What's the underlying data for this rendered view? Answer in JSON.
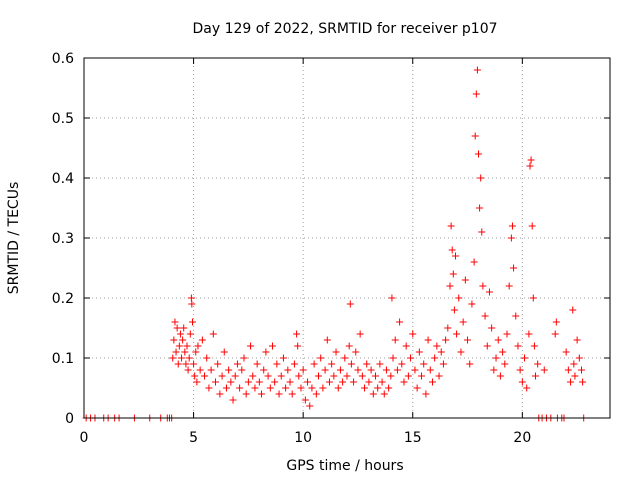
{
  "chart_data": {
    "type": "scatter",
    "title": "Day 129 of 2022, SRMTID for receiver p107",
    "xlabel": "GPS time / hours",
    "ylabel": "SRMTID / TECUs",
    "xlim": [
      0,
      24
    ],
    "ylim": [
      0,
      0.6
    ],
    "xticks": [
      0,
      5,
      10,
      15,
      20
    ],
    "yticks": [
      0,
      0.1,
      0.2,
      0.3,
      0.4,
      0.5,
      0.6
    ],
    "ytick_labels": [
      "0",
      "0.1",
      "0.2",
      "0.3",
      "0.4",
      "0.5",
      "0.6"
    ],
    "grid": true,
    "marker": "+",
    "color": "#ff0000",
    "series": [
      {
        "name": "SRMTID",
        "points": [
          [
            0.1,
            0
          ],
          [
            0.3,
            0
          ],
          [
            0.5,
            0
          ],
          [
            0.9,
            0
          ],
          [
            1.1,
            0
          ],
          [
            1.4,
            0
          ],
          [
            1.6,
            0
          ],
          [
            2.3,
            0
          ],
          [
            3.0,
            0
          ],
          [
            3.5,
            0
          ],
          [
            3.8,
            0
          ],
          [
            3.9,
            0
          ],
          [
            4.0,
            0
          ],
          [
            4.05,
            0.1
          ],
          [
            4.1,
            0.13
          ],
          [
            4.15,
            0.16
          ],
          [
            4.2,
            0.11
          ],
          [
            4.25,
            0.15
          ],
          [
            4.3,
            0.09
          ],
          [
            4.35,
            0.12
          ],
          [
            4.4,
            0.14
          ],
          [
            4.45,
            0.1
          ],
          [
            4.5,
            0.13
          ],
          [
            4.55,
            0.15
          ],
          [
            4.6,
            0.11
          ],
          [
            4.65,
            0.09
          ],
          [
            4.7,
            0.12
          ],
          [
            4.75,
            0.08
          ],
          [
            4.8,
            0.1
          ],
          [
            4.85,
            0.14
          ],
          [
            4.9,
            0.2
          ],
          [
            4.92,
            0.19
          ],
          [
            4.95,
            0.16
          ],
          [
            5.0,
            0.09
          ],
          [
            5.05,
            0.07
          ],
          [
            5.1,
            0.11
          ],
          [
            5.15,
            0.06
          ],
          [
            5.2,
            0.12
          ],
          [
            5.3,
            0.08
          ],
          [
            5.4,
            0.13
          ],
          [
            5.5,
            0.07
          ],
          [
            5.6,
            0.1
          ],
          [
            5.7,
            0.05
          ],
          [
            5.8,
            0.08
          ],
          [
            5.9,
            0.14
          ],
          [
            6.0,
            0.06
          ],
          [
            6.1,
            0.09
          ],
          [
            6.2,
            0.04
          ],
          [
            6.3,
            0.07
          ],
          [
            6.4,
            0.11
          ],
          [
            6.5,
            0.05
          ],
          [
            6.6,
            0.08
          ],
          [
            6.7,
            0.06
          ],
          [
            6.8,
            0.03
          ],
          [
            6.9,
            0.07
          ],
          [
            7.0,
            0.09
          ],
          [
            7.1,
            0.05
          ],
          [
            7.2,
            0.08
          ],
          [
            7.3,
            0.1
          ],
          [
            7.4,
            0.04
          ],
          [
            7.5,
            0.06
          ],
          [
            7.6,
            0.12
          ],
          [
            7.7,
            0.07
          ],
          [
            7.8,
            0.05
          ],
          [
            7.9,
            0.09
          ],
          [
            8.0,
            0.06
          ],
          [
            8.1,
            0.04
          ],
          [
            8.2,
            0.08
          ],
          [
            8.3,
            0.11
          ],
          [
            8.4,
            0.07
          ],
          [
            8.5,
            0.05
          ],
          [
            8.6,
            0.12
          ],
          [
            8.7,
            0.06
          ],
          [
            8.8,
            0.09
          ],
          [
            8.9,
            0.04
          ],
          [
            9.0,
            0.07
          ],
          [
            9.1,
            0.1
          ],
          [
            9.2,
            0.05
          ],
          [
            9.3,
            0.08
          ],
          [
            9.4,
            0.06
          ],
          [
            9.5,
            0.04
          ],
          [
            9.6,
            0.09
          ],
          [
            9.7,
            0.14
          ],
          [
            9.75,
            0.12
          ],
          [
            9.8,
            0.07
          ],
          [
            9.9,
            0.05
          ],
          [
            10.0,
            0.08
          ],
          [
            10.1,
            0.03
          ],
          [
            10.2,
            0.06
          ],
          [
            10.3,
            0.02
          ],
          [
            10.4,
            0.05
          ],
          [
            10.5,
            0.09
          ],
          [
            10.6,
            0.04
          ],
          [
            10.7,
            0.07
          ],
          [
            10.8,
            0.1
          ],
          [
            10.9,
            0.05
          ],
          [
            11.0,
            0.08
          ],
          [
            11.1,
            0.13
          ],
          [
            11.2,
            0.06
          ],
          [
            11.3,
            0.09
          ],
          [
            11.4,
            0.07
          ],
          [
            11.5,
            0.11
          ],
          [
            11.6,
            0.05
          ],
          [
            11.7,
            0.08
          ],
          [
            11.8,
            0.06
          ],
          [
            11.9,
            0.1
          ],
          [
            12.0,
            0.07
          ],
          [
            12.1,
            0.12
          ],
          [
            12.15,
            0.19
          ],
          [
            12.2,
            0.09
          ],
          [
            12.3,
            0.06
          ],
          [
            12.4,
            0.11
          ],
          [
            12.5,
            0.08
          ],
          [
            12.6,
            0.14
          ],
          [
            12.7,
            0.07
          ],
          [
            12.8,
            0.05
          ],
          [
            12.9,
            0.09
          ],
          [
            13.0,
            0.06
          ],
          [
            13.1,
            0.08
          ],
          [
            13.2,
            0.04
          ],
          [
            13.3,
            0.07
          ],
          [
            13.4,
            0.05
          ],
          [
            13.5,
            0.09
          ],
          [
            13.6,
            0.06
          ],
          [
            13.7,
            0.04
          ],
          [
            13.8,
            0.08
          ],
          [
            13.9,
            0.05
          ],
          [
            14.0,
            0.07
          ],
          [
            14.05,
            0.2
          ],
          [
            14.1,
            0.1
          ],
          [
            14.2,
            0.13
          ],
          [
            14.3,
            0.08
          ],
          [
            14.4,
            0.16
          ],
          [
            14.5,
            0.09
          ],
          [
            14.6,
            0.06
          ],
          [
            14.7,
            0.12
          ],
          [
            14.8,
            0.07
          ],
          [
            14.9,
            0.1
          ],
          [
            15.0,
            0.14
          ],
          [
            15.1,
            0.08
          ],
          [
            15.2,
            0.05
          ],
          [
            15.3,
            0.11
          ],
          [
            15.4,
            0.07
          ],
          [
            15.5,
            0.09
          ],
          [
            15.6,
            0.04
          ],
          [
            15.7,
            0.13
          ],
          [
            15.8,
            0.08
          ],
          [
            15.9,
            0.06
          ],
          [
            16.0,
            0.1
          ],
          [
            16.1,
            0.12
          ],
          [
            16.2,
            0.07
          ],
          [
            16.3,
            0.11
          ],
          [
            16.4,
            0.09
          ],
          [
            16.5,
            0.13
          ],
          [
            16.6,
            0.15
          ],
          [
            16.7,
            0.22
          ],
          [
            16.75,
            0.32
          ],
          [
            16.8,
            0.28
          ],
          [
            16.85,
            0.24
          ],
          [
            16.9,
            0.18
          ],
          [
            16.95,
            0.27
          ],
          [
            17.0,
            0.14
          ],
          [
            17.1,
            0.2
          ],
          [
            17.2,
            0.11
          ],
          [
            17.3,
            0.16
          ],
          [
            17.4,
            0.23
          ],
          [
            17.5,
            0.13
          ],
          [
            17.6,
            0.09
          ],
          [
            17.7,
            0.19
          ],
          [
            17.8,
            0.26
          ],
          [
            17.85,
            0.47
          ],
          [
            17.9,
            0.54
          ],
          [
            17.95,
            0.58
          ],
          [
            18.0,
            0.44
          ],
          [
            18.05,
            0.35
          ],
          [
            18.1,
            0.4
          ],
          [
            18.15,
            0.31
          ],
          [
            18.2,
            0.22
          ],
          [
            18.3,
            0.17
          ],
          [
            18.4,
            0.12
          ],
          [
            18.5,
            0.21
          ],
          [
            18.6,
            0.15
          ],
          [
            18.7,
            0.08
          ],
          [
            18.8,
            0.1
          ],
          [
            18.9,
            0.13
          ],
          [
            19.0,
            0.07
          ],
          [
            19.1,
            0.11
          ],
          [
            19.2,
            0.09
          ],
          [
            19.3,
            0.14
          ],
          [
            19.4,
            0.22
          ],
          [
            19.5,
            0.3
          ],
          [
            19.55,
            0.32
          ],
          [
            19.6,
            0.25
          ],
          [
            19.7,
            0.17
          ],
          [
            19.8,
            0.12
          ],
          [
            19.9,
            0.08
          ],
          [
            20.0,
            0.06
          ],
          [
            20.1,
            0.1
          ],
          [
            20.2,
            0.05
          ],
          [
            20.3,
            0.14
          ],
          [
            20.35,
            0.42
          ],
          [
            20.4,
            0.43
          ],
          [
            20.45,
            0.32
          ],
          [
            20.5,
            0.2
          ],
          [
            20.55,
            0.12
          ],
          [
            20.6,
            0.07
          ],
          [
            20.7,
            0.09
          ],
          [
            20.75,
            0
          ],
          [
            20.9,
            0
          ],
          [
            21.0,
            0.08
          ],
          [
            21.1,
            0
          ],
          [
            21.3,
            0
          ],
          [
            21.5,
            0.14
          ],
          [
            21.55,
            0.16
          ],
          [
            21.6,
            0
          ],
          [
            21.8,
            0
          ],
          [
            21.9,
            0
          ],
          [
            22.0,
            0.11
          ],
          [
            22.1,
            0.08
          ],
          [
            22.2,
            0.06
          ],
          [
            22.3,
            0.18
          ],
          [
            22.35,
            0.09
          ],
          [
            22.4,
            0.07
          ],
          [
            22.5,
            0.13
          ],
          [
            22.6,
            0.1
          ],
          [
            22.7,
            0.08
          ],
          [
            22.75,
            0.06
          ],
          [
            22.8,
            0
          ]
        ]
      }
    ]
  }
}
